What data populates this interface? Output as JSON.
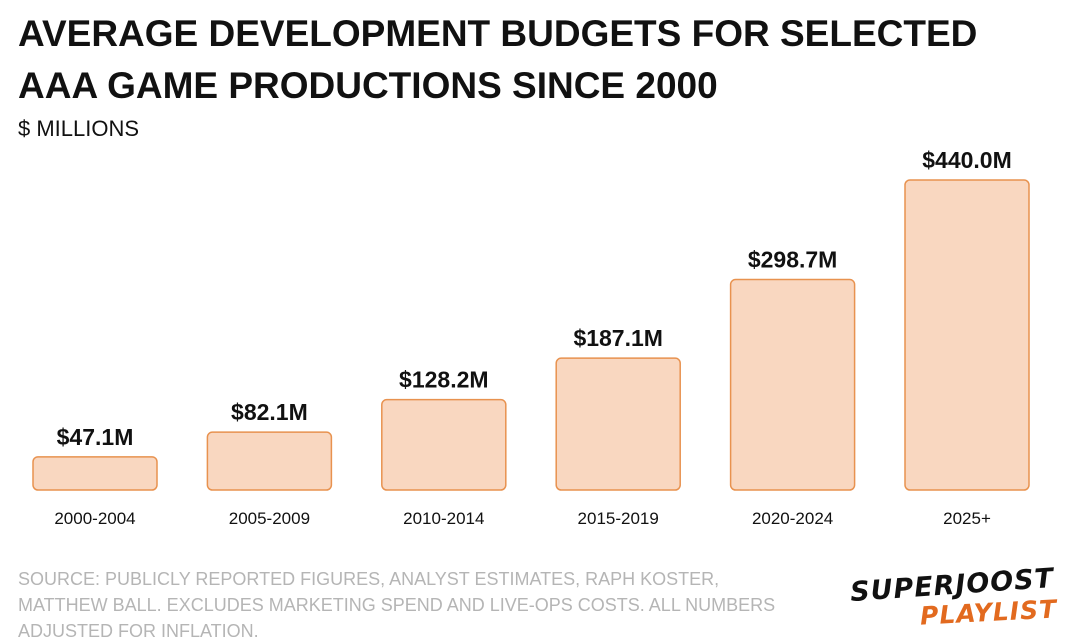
{
  "chart_data": {
    "type": "bar",
    "title_line1": "AVERAGE DEVELOPMENT BUDGETS FOR SELECTED",
    "title_line2": "AAA GAME PRODUCTIONS SINCE 2000",
    "subtitle": "$ MILLIONS",
    "categories": [
      "2000-2004",
      "2005-2009",
      "2010-2014",
      "2015-2019",
      "2020-2024",
      "2025+"
    ],
    "values": [
      47.1,
      82.1,
      128.2,
      187.1,
      298.7,
      440.0
    ],
    "data_labels": [
      "$47.1M",
      "$82.1M",
      "$128.2M",
      "$187.1M",
      "$298.7M",
      "$440.0M"
    ],
    "ylim": [
      0,
      440
    ],
    "grid": false,
    "legend": "none",
    "colors": {
      "bar_fill": "#f9d7c0",
      "bar_stroke": "#e8924f",
      "label": "#111111"
    }
  },
  "source": {
    "line1": "SOURCE: PUBLICLY REPORTED FIGURES, ANALYST ESTIMATES, RAPH KOSTER,",
    "line2": "MATTHEW BALL. EXCLUDES MARKETING SPEND AND LIVE-OPS COSTS. ALL NUMBERS",
    "line3": "ADJUSTED FOR INFLATION."
  },
  "logo": {
    "top": "SUPERJOOST",
    "bottom": "PLAYLIST",
    "colors": {
      "top": "#111111",
      "bottom": "#e26a1f"
    }
  }
}
